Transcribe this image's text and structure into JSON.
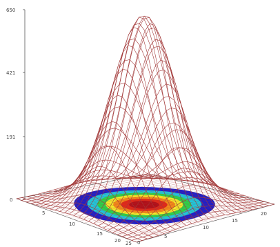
{
  "chart_data": {
    "type": "surface",
    "z_ticks": [
      "0",
      "191",
      "421",
      "650"
    ],
    "x_ticks": [
      "0",
      "5",
      "10",
      "15",
      "20"
    ],
    "y_ticks": [
      "5",
      "10",
      "15",
      "20"
    ],
    "corner_label": "25",
    "zlim": [
      0,
      650
    ],
    "grid_x": [
      0,
      25
    ],
    "grid_y": [
      0,
      25
    ],
    "surface": {
      "kind": "gaussian",
      "peak": 650,
      "center": [
        12.5,
        12.5
      ],
      "sigma": 4.5
    },
    "floor_projection": "filled contour (heat map) of the surface under the peak",
    "colors": {
      "mesh": "#a33a3a",
      "axis": "#555555",
      "heat_scale": [
        "#1f1fc8",
        "#1ec8dc",
        "#2bd24a",
        "#f2ea2a",
        "#f28a1a",
        "#e02a1a",
        "#b0101a"
      ]
    }
  }
}
